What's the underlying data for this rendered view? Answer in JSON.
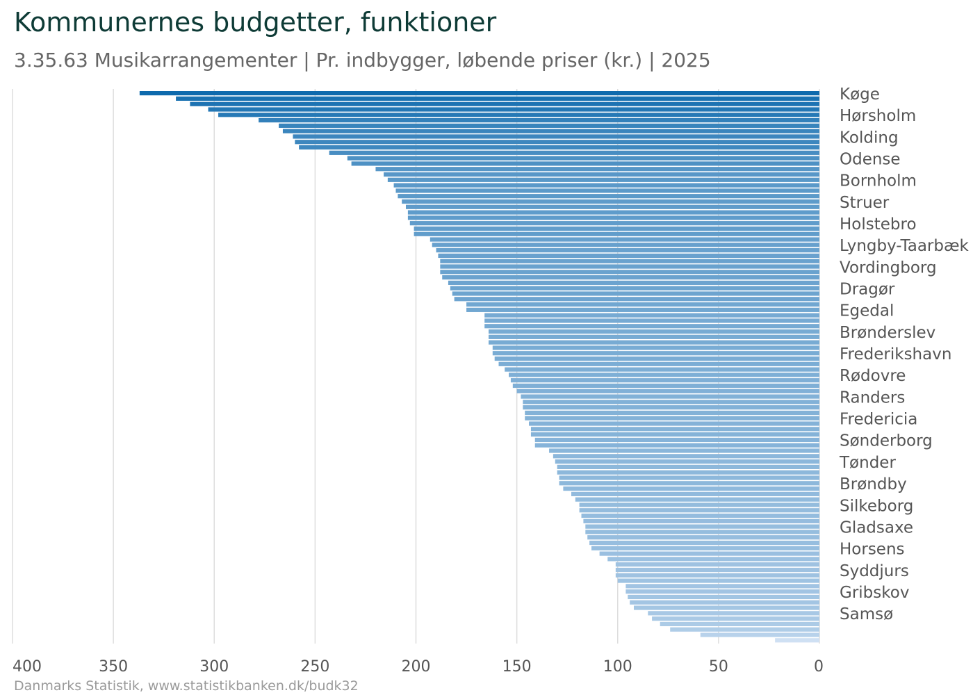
{
  "title": "Kommunernes budgetter, funktioner",
  "subtitle": "3.35.63 Musikarrangementer | Pr. indbygger, løbende priser (kr.) | 2025",
  "source": "Danmarks Statistik, www.statistikbanken.dk/budk32",
  "colors": {
    "bar_dark": "#0e6aad",
    "bar_light": "#cfe0f3",
    "grid": "#dddddd"
  },
  "chart_data": {
    "type": "bar",
    "orientation": "horizontal",
    "x_axis": "reversed",
    "xlim": [
      0,
      400
    ],
    "ticks": [
      400,
      350,
      300,
      250,
      200,
      150,
      100,
      50,
      0
    ],
    "grid": true,
    "labeled_categories": [
      "Køge",
      "Hørsholm",
      "Kolding",
      "Odense",
      "Bornholm",
      "Struer",
      "Holstebro",
      "Lyngby-Taarbæk",
      "Vordingborg",
      "Dragør",
      "Egedal",
      "Brønderslev",
      "Frederikshavn",
      "Rødovre",
      "Randers",
      "Fredericia",
      "Sønderborg",
      "Tønder",
      "Brøndby",
      "Silkeborg",
      "Gladsaxe",
      "Horsens",
      "Syddjurs",
      "Gribskov",
      "Samsø"
    ],
    "values": [
      337,
      319,
      312,
      303,
      298,
      278,
      268,
      266,
      261,
      260,
      258,
      243,
      234,
      232,
      220,
      216,
      214,
      211,
      210,
      209,
      207,
      205,
      204,
      204,
      203,
      201,
      201,
      193,
      192,
      190,
      189,
      188,
      188,
      188,
      187,
      184,
      183,
      182,
      181,
      175,
      175,
      166,
      166,
      166,
      164,
      164,
      164,
      162,
      162,
      161,
      159,
      156,
      154,
      153,
      152,
      150,
      148,
      147,
      147,
      146,
      146,
      144,
      143,
      143,
      141,
      141,
      134,
      132,
      131,
      130,
      130,
      129,
      129,
      127,
      123,
      121,
      119,
      119,
      118,
      117,
      116,
      116,
      115,
      114,
      113,
      109,
      105,
      101,
      101,
      101,
      100,
      96,
      96,
      95,
      94,
      92,
      85,
      83,
      79,
      74,
      59,
      22
    ]
  }
}
